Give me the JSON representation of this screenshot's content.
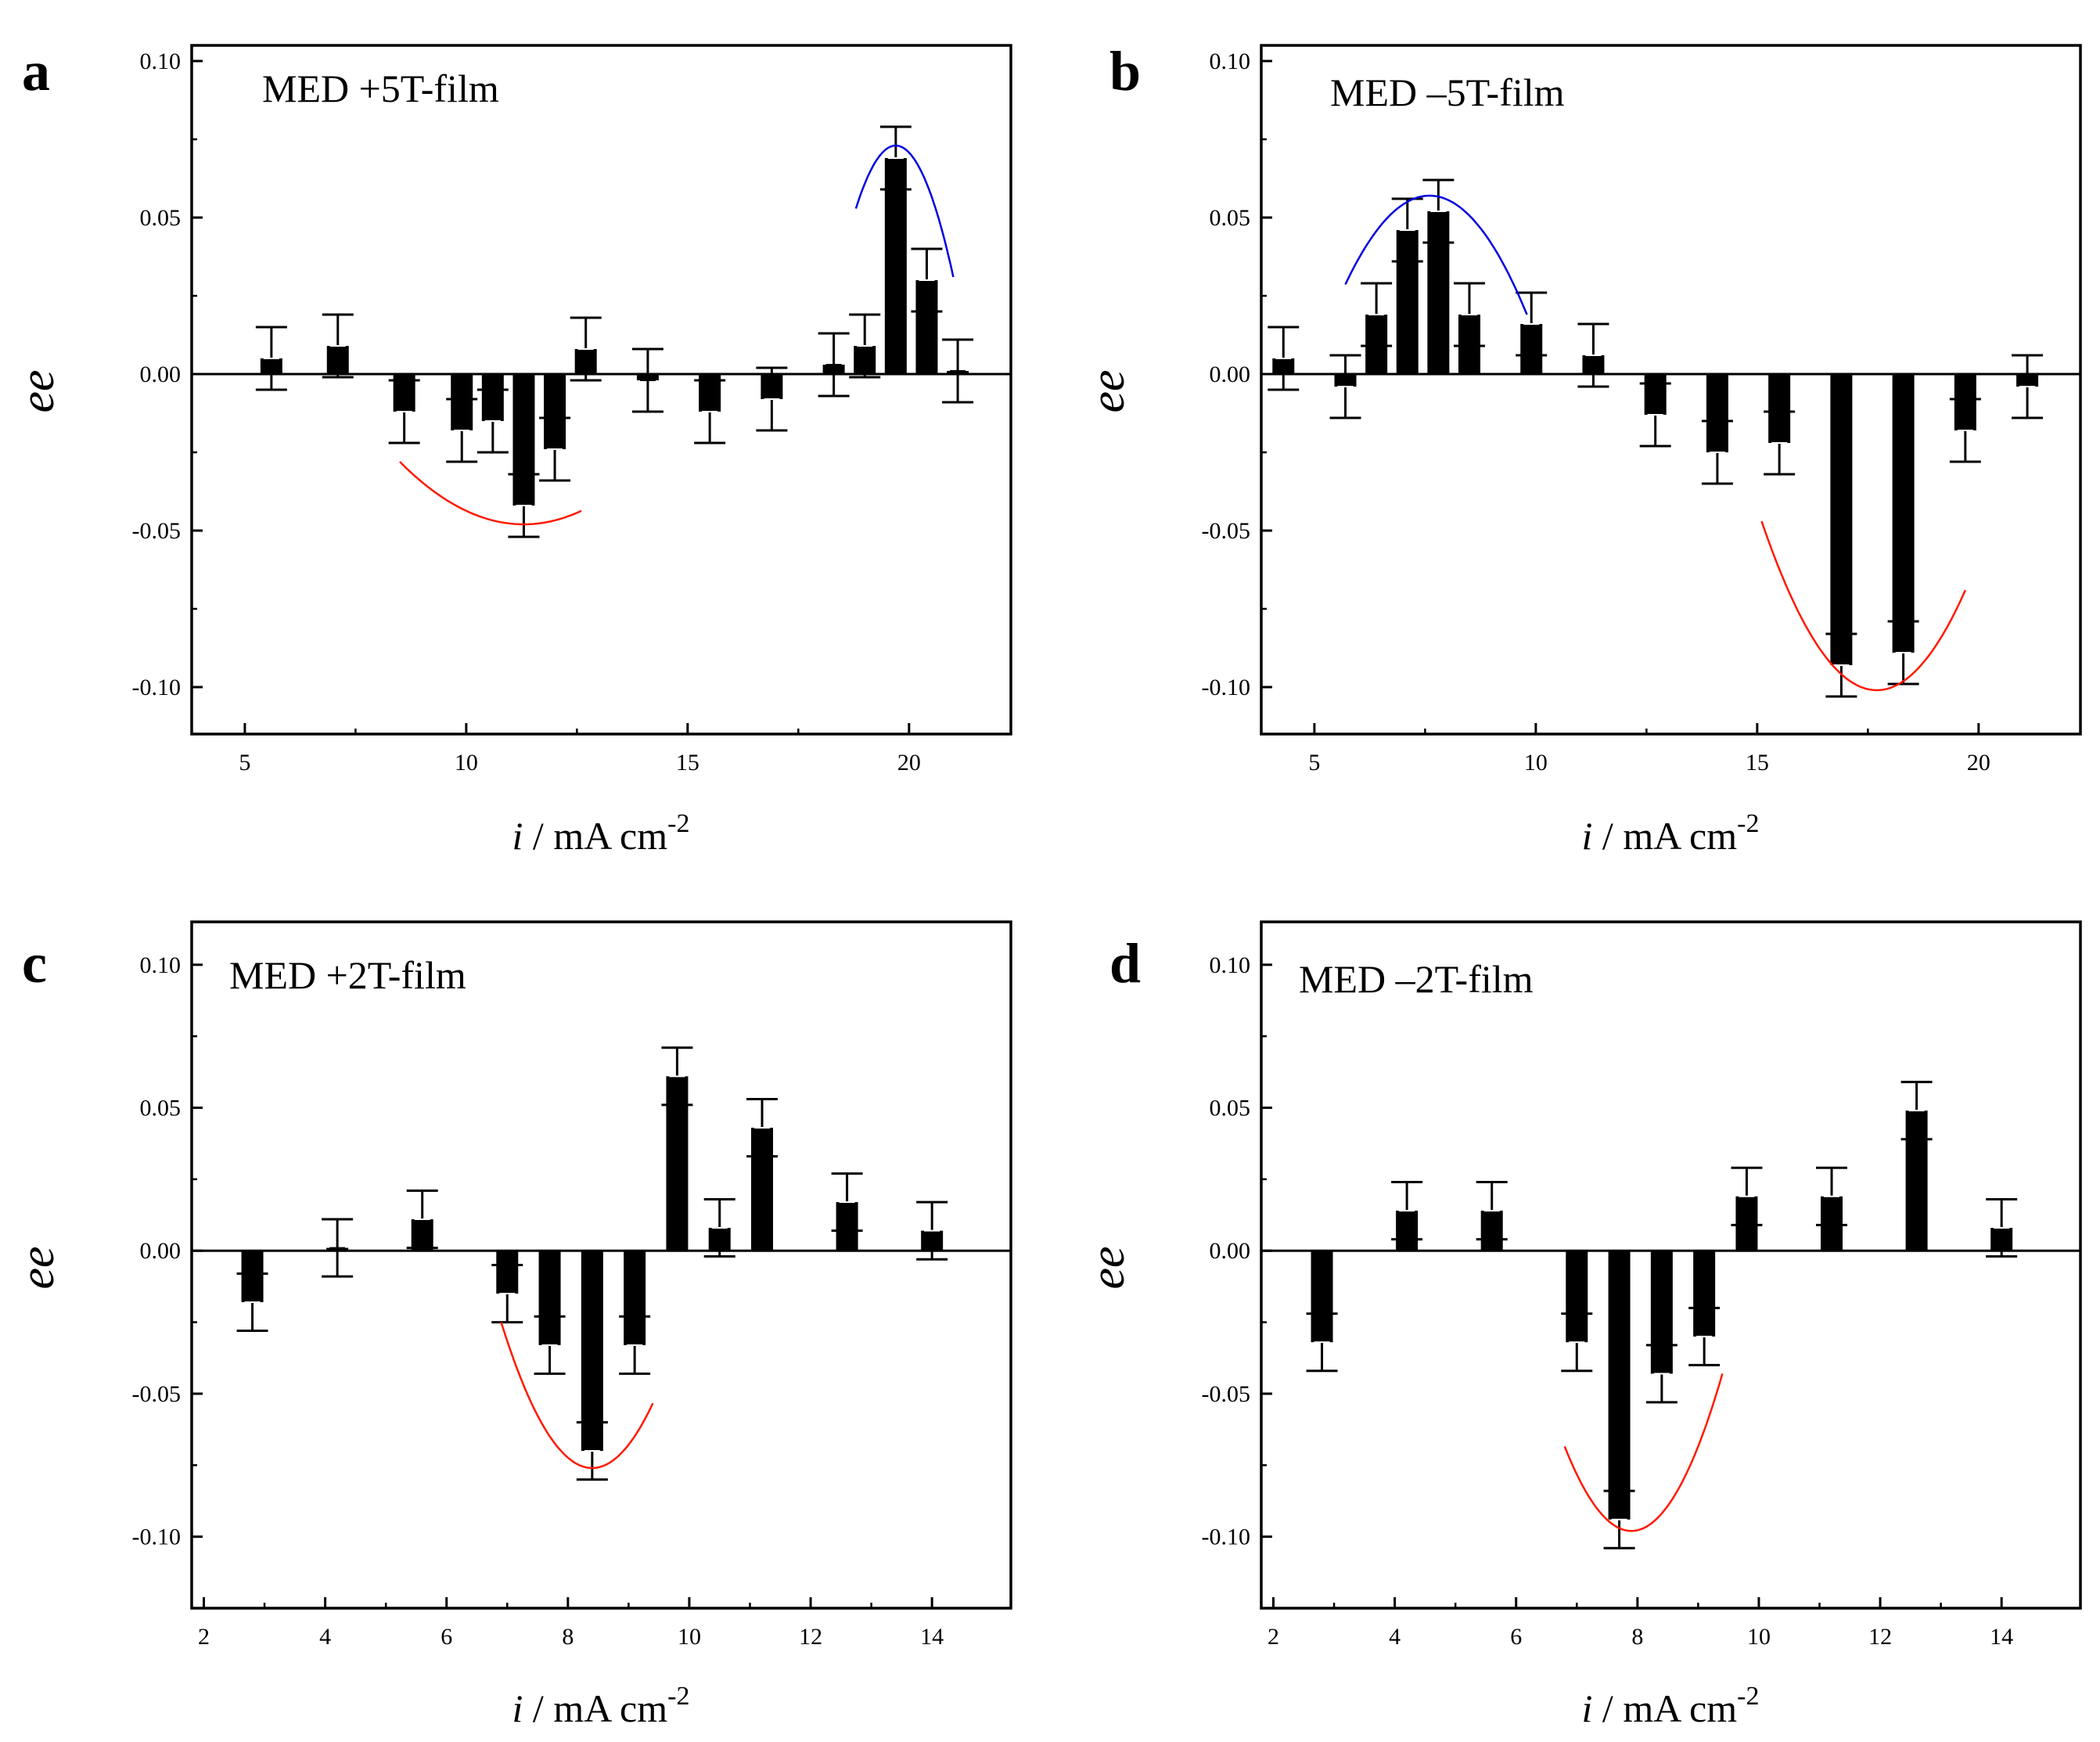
{
  "chart_data": [
    {
      "type": "bar",
      "panel": "a",
      "title": "MED +5T-film",
      "xlabel": "i / mA cm-2",
      "xlabel_var": "i",
      "xlabel_unit": " / mA cm",
      "xlabel_exp": "-2",
      "ylabel": "ee",
      "xlim": [
        3.8,
        22.3
      ],
      "ylim": [
        -0.115,
        0.105
      ],
      "xticks": [
        5,
        10,
        15,
        20
      ],
      "xtick_labels": [
        "5",
        "10",
        "15",
        "20"
      ],
      "yticks": [
        -0.1,
        -0.05,
        0,
        0.05,
        0.1
      ],
      "ytick_labels": [
        "-0.10",
        "-0.05",
        "0.00",
        "0.05",
        "0.10"
      ],
      "grid": false,
      "points": [
        {
          "x": 5.6,
          "y": 0.005,
          "err": 0.01
        },
        {
          "x": 7.1,
          "y": 0.009,
          "err": 0.01
        },
        {
          "x": 8.6,
          "y": -0.012,
          "err": 0.01
        },
        {
          "x": 9.9,
          "y": -0.018,
          "err": 0.01
        },
        {
          "x": 10.6,
          "y": -0.015,
          "err": 0.01
        },
        {
          "x": 11.3,
          "y": -0.042,
          "err": 0.01
        },
        {
          "x": 12.0,
          "y": -0.024,
          "err": 0.01
        },
        {
          "x": 12.7,
          "y": 0.008,
          "err": 0.01
        },
        {
          "x": 14.1,
          "y": -0.002,
          "err": 0.01
        },
        {
          "x": 15.5,
          "y": -0.012,
          "err": 0.01
        },
        {
          "x": 16.9,
          "y": -0.008,
          "err": 0.01
        },
        {
          "x": 18.3,
          "y": 0.003,
          "err": 0.01
        },
        {
          "x": 19.0,
          "y": 0.009,
          "err": 0.01
        },
        {
          "x": 19.7,
          "y": 0.069,
          "err": 0.01
        },
        {
          "x": 20.4,
          "y": 0.03,
          "err": 0.01
        },
        {
          "x": 21.1,
          "y": 0.001,
          "err": 0.01
        }
      ],
      "fit_curves": [
        {
          "color": "#ff1a00",
          "x_range": [
            8.5,
            12.6
          ],
          "vertex_x": 11.3,
          "vertex_y": -0.048,
          "end_y": -0.028
        },
        {
          "color": "#0000e0",
          "x_range": [
            18.8,
            21.0
          ],
          "vertex_x": 19.7,
          "vertex_y": 0.073,
          "end_y": 0.031
        }
      ]
    },
    {
      "type": "bar",
      "panel": "b",
      "title": "MED –5T-film",
      "xlabel": "i / mA cm-2",
      "xlabel_var": "i",
      "xlabel_unit": " / mA cm",
      "xlabel_exp": "-2",
      "ylabel": "ee",
      "xlim": [
        3.8,
        22.3
      ],
      "ylim": [
        -0.115,
        0.105
      ],
      "xticks": [
        5,
        10,
        15,
        20
      ],
      "xtick_labels": [
        "5",
        "10",
        "15",
        "20"
      ],
      "yticks": [
        -0.1,
        -0.05,
        0,
        0.05,
        0.1
      ],
      "ytick_labels": [
        "-0.10",
        "-0.05",
        "0.00",
        "0.05",
        "0.10"
      ],
      "grid": false,
      "points": [
        {
          "x": 4.3,
          "y": 0.005,
          "err": 0.01
        },
        {
          "x": 5.7,
          "y": -0.004,
          "err": 0.01
        },
        {
          "x": 6.4,
          "y": 0.019,
          "err": 0.01
        },
        {
          "x": 7.1,
          "y": 0.046,
          "err": 0.01
        },
        {
          "x": 7.8,
          "y": 0.052,
          "err": 0.01
        },
        {
          "x": 8.5,
          "y": 0.019,
          "err": 0.01
        },
        {
          "x": 9.9,
          "y": 0.016,
          "err": 0.01
        },
        {
          "x": 11.3,
          "y": 0.006,
          "err": 0.01
        },
        {
          "x": 12.7,
          "y": -0.013,
          "err": 0.01
        },
        {
          "x": 14.1,
          "y": -0.025,
          "err": 0.01
        },
        {
          "x": 15.5,
          "y": -0.022,
          "err": 0.01
        },
        {
          "x": 16.9,
          "y": -0.093,
          "err": 0.01
        },
        {
          "x": 18.3,
          "y": -0.089,
          "err": 0.01
        },
        {
          "x": 19.7,
          "y": -0.018,
          "err": 0.01
        },
        {
          "x": 21.1,
          "y": -0.004,
          "err": 0.01
        }
      ],
      "fit_curves": [
        {
          "color": "#0000e0",
          "x_range": [
            5.7,
            9.8
          ],
          "vertex_x": 7.6,
          "vertex_y": 0.057,
          "end_y": 0.019
        },
        {
          "color": "#ff1a00",
          "x_range": [
            15.1,
            19.7
          ],
          "vertex_x": 17.7,
          "vertex_y": -0.101,
          "end_y": -0.047
        }
      ]
    },
    {
      "type": "bar",
      "panel": "c",
      "title": "MED +2T-film",
      "xlabel": "i / mA cm-2",
      "xlabel_var": "i",
      "xlabel_unit": " / mA cm",
      "xlabel_exp": "-2",
      "ylabel": "ee",
      "xlim": [
        1.8,
        15.3
      ],
      "ylim": [
        -0.125,
        0.115
      ],
      "xticks": [
        2,
        4,
        6,
        8,
        10,
        12,
        14
      ],
      "xtick_labels": [
        "2",
        "4",
        "6",
        "8",
        "10",
        "12",
        "14"
      ],
      "yticks": [
        -0.1,
        -0.05,
        0,
        0.05,
        0.1
      ],
      "ytick_labels": [
        "-0.10",
        "-0.05",
        "0.00",
        "0.05",
        "0.10"
      ],
      "grid": false,
      "points": [
        {
          "x": 2.8,
          "y": -0.018,
          "err": 0.01
        },
        {
          "x": 4.2,
          "y": 0.001,
          "err": 0.01
        },
        {
          "x": 5.6,
          "y": 0.011,
          "err": 0.01
        },
        {
          "x": 7.0,
          "y": -0.015,
          "err": 0.01
        },
        {
          "x": 7.7,
          "y": -0.033,
          "err": 0.01
        },
        {
          "x": 8.4,
          "y": -0.07,
          "err": 0.01
        },
        {
          "x": 9.1,
          "y": -0.033,
          "err": 0.01
        },
        {
          "x": 9.8,
          "y": 0.061,
          "err": 0.01
        },
        {
          "x": 10.5,
          "y": 0.008,
          "err": 0.01
        },
        {
          "x": 11.2,
          "y": 0.043,
          "err": 0.01
        },
        {
          "x": 12.6,
          "y": 0.017,
          "err": 0.01
        },
        {
          "x": 14.0,
          "y": 0.007,
          "err": 0.01
        }
      ],
      "fit_curves": [
        {
          "color": "#ff1a00",
          "x_range": [
            6.9,
            9.4
          ],
          "vertex_x": 8.4,
          "vertex_y": -0.076,
          "end_y": -0.025
        }
      ]
    },
    {
      "type": "bar",
      "panel": "d",
      "title": "MED –2T-film",
      "xlabel": "i / mA cm-2",
      "xlabel_var": "i",
      "xlabel_unit": " / mA cm",
      "xlabel_exp": "-2",
      "ylabel": "ee",
      "xlim": [
        1.8,
        15.3
      ],
      "ylim": [
        -0.125,
        0.115
      ],
      "xticks": [
        2,
        4,
        6,
        8,
        10,
        12,
        14
      ],
      "xtick_labels": [
        "2",
        "4",
        "6",
        "8",
        "10",
        "12",
        "14"
      ],
      "yticks": [
        -0.1,
        -0.05,
        0,
        0.05,
        0.1
      ],
      "ytick_labels": [
        "-0.10",
        "-0.05",
        "0.00",
        "0.05",
        "0.10"
      ],
      "grid": false,
      "points": [
        {
          "x": 2.8,
          "y": -0.032,
          "err": 0.01
        },
        {
          "x": 4.2,
          "y": 0.014,
          "err": 0.01
        },
        {
          "x": 5.6,
          "y": 0.014,
          "err": 0.01
        },
        {
          "x": 7.0,
          "y": -0.032,
          "err": 0.01
        },
        {
          "x": 7.7,
          "y": -0.094,
          "err": 0.01
        },
        {
          "x": 8.4,
          "y": -0.043,
          "err": 0.01
        },
        {
          "x": 9.1,
          "y": -0.03,
          "err": 0.01
        },
        {
          "x": 9.8,
          "y": 0.019,
          "err": 0.01
        },
        {
          "x": 11.2,
          "y": 0.019,
          "err": 0.01
        },
        {
          "x": 12.6,
          "y": 0.049,
          "err": 0.01
        },
        {
          "x": 14.0,
          "y": 0.008,
          "err": 0.01
        }
      ],
      "fit_curves": [
        {
          "color": "#ff1a00",
          "x_range": [
            6.8,
            9.4
          ],
          "vertex_x": 7.9,
          "vertex_y": -0.098,
          "end_y": -0.043
        }
      ]
    }
  ]
}
